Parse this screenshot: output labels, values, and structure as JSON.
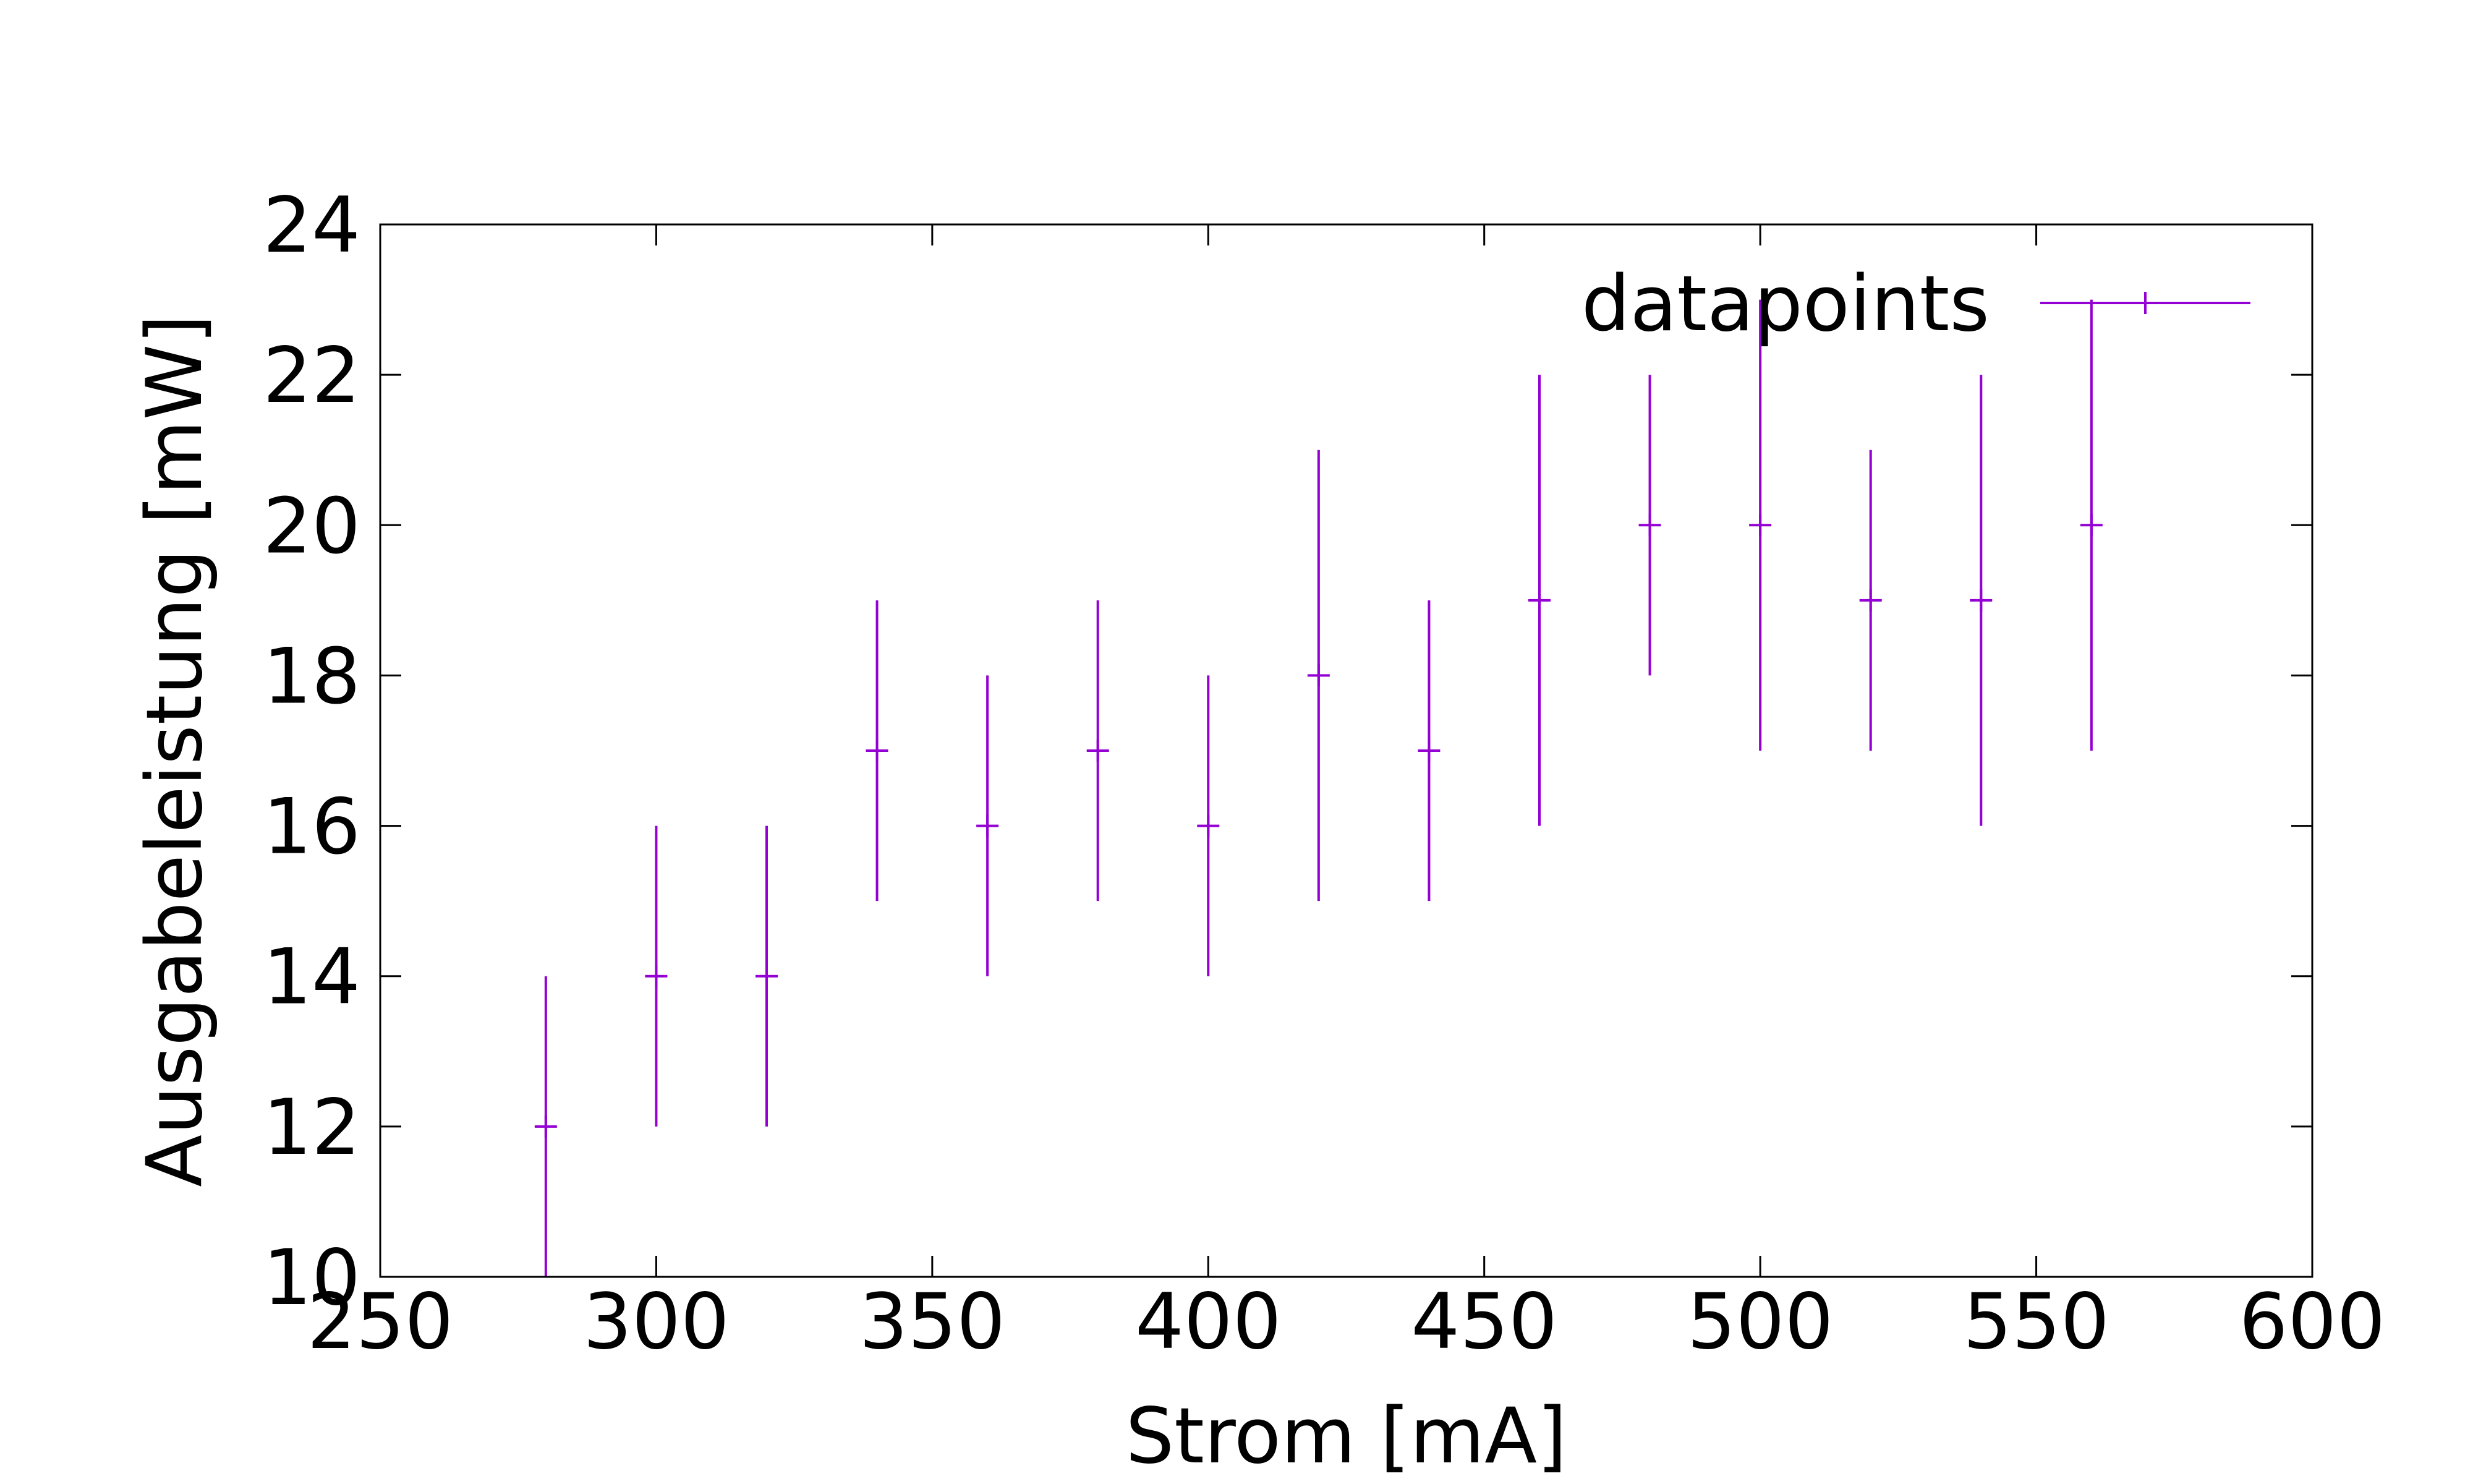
{
  "chart_data": {
    "type": "scatter",
    "title": "",
    "xlabel": "Strom [mA]",
    "ylabel": "Ausgabeleistung [mW]",
    "xlim": [
      250,
      600
    ],
    "ylim": [
      10,
      24
    ],
    "xticks": [
      250,
      300,
      350,
      400,
      450,
      500,
      550,
      600
    ],
    "yticks": [
      10,
      12,
      14,
      16,
      18,
      20,
      22,
      24
    ],
    "grid": false,
    "legend_position": "top-right",
    "colors": {
      "series": "#9400d3",
      "axis": "#000000"
    },
    "series": [
      {
        "name": "datapoints",
        "marker": "plus",
        "error_bars": "y",
        "x": [
          280,
          300,
          320,
          340,
          360,
          380,
          400,
          420,
          440,
          460,
          480,
          500,
          520,
          540,
          560
        ],
        "y": [
          12,
          14,
          14,
          17,
          16,
          17,
          16,
          18,
          17,
          19,
          20,
          20,
          19,
          19,
          20
        ],
        "ymin": [
          10,
          12,
          12,
          15,
          14,
          15,
          14,
          15,
          15,
          16,
          18,
          17,
          17,
          16,
          17
        ],
        "ymax": [
          14,
          16,
          16,
          19,
          18,
          19,
          18,
          21,
          19,
          22,
          22,
          23,
          21,
          22,
          23
        ]
      }
    ]
  }
}
